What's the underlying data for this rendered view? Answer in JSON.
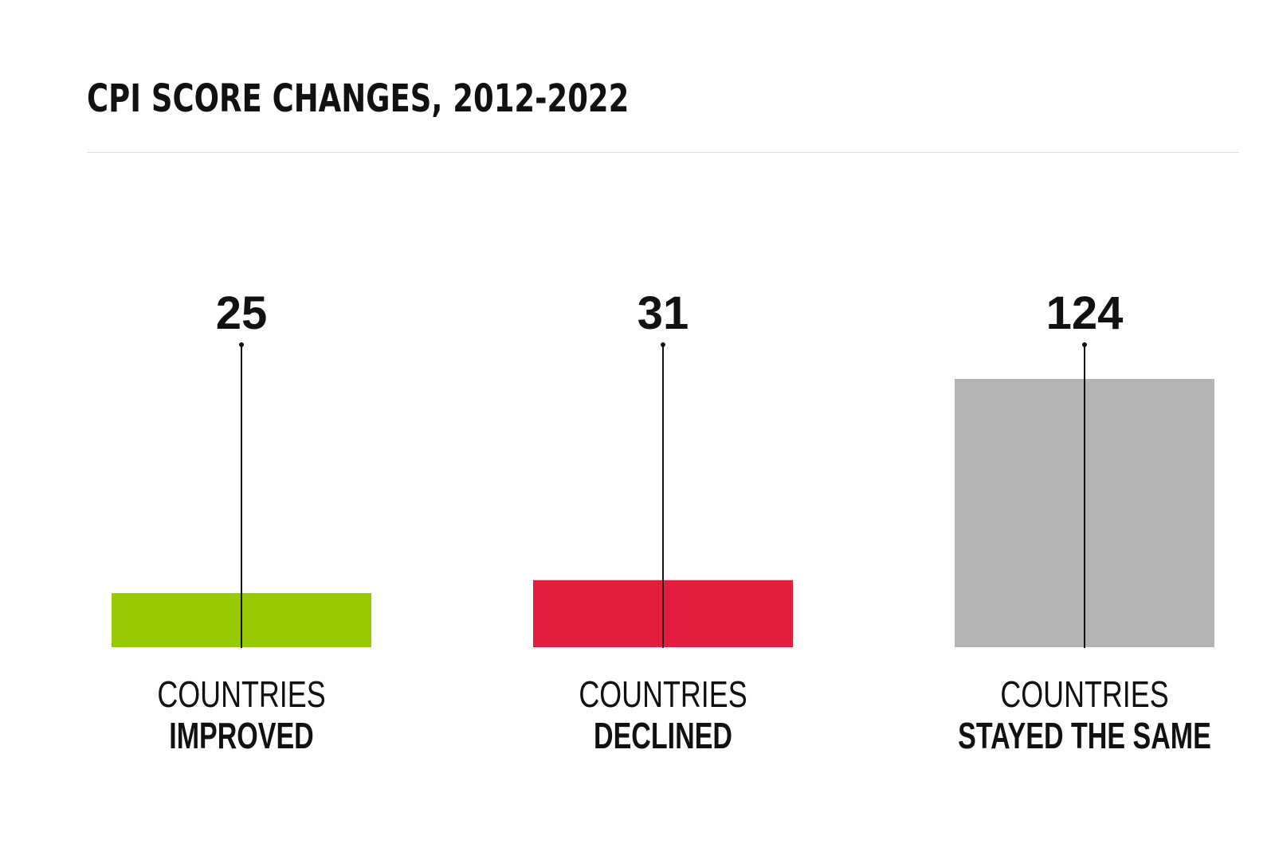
{
  "chart_data": {
    "type": "bar",
    "title": "CPI SCORE CHANGES, 2012-2022",
    "categories": [
      "IMPROVED",
      "DECLINED",
      "STAYED THE SAME"
    ],
    "values": [
      25,
      31,
      124
    ],
    "labels": [
      {
        "line1": "COUNTRIES",
        "line2": "IMPROVED"
      },
      {
        "line1": "COUNTRIES",
        "line2": "DECLINED"
      },
      {
        "line1": "COUNTRIES",
        "line2": "STAYED THE SAME"
      }
    ],
    "colors": [
      "#97c900",
      "#e31e3c",
      "#b3b3b3"
    ],
    "ylim": [
      0,
      124
    ],
    "xlabel": "",
    "ylabel": "",
    "grid": false
  }
}
